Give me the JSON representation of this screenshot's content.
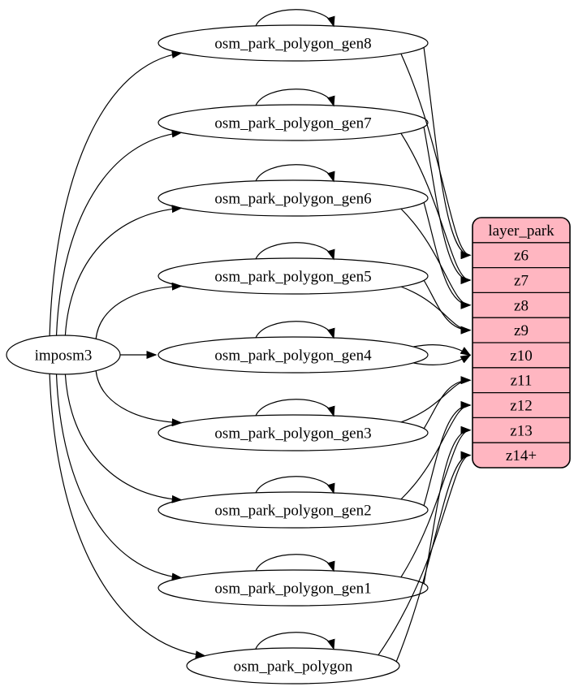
{
  "diagram": {
    "source_node": {
      "label": "imposm3"
    },
    "generator_tables": [
      {
        "label": "osm_park_polygon_gen8",
        "fed_by": "imposm3",
        "self_loop": true,
        "feeds_row": "z6",
        "row_edge_count": 2
      },
      {
        "label": "osm_park_polygon_gen7",
        "fed_by": "imposm3",
        "self_loop": true,
        "feeds_row": "z7",
        "row_edge_count": 2
      },
      {
        "label": "osm_park_polygon_gen6",
        "fed_by": "imposm3",
        "self_loop": true,
        "feeds_row": "z8",
        "row_edge_count": 2
      },
      {
        "label": "osm_park_polygon_gen5",
        "fed_by": "imposm3",
        "self_loop": true,
        "feeds_row": "z9",
        "row_edge_count": 2
      },
      {
        "label": "osm_park_polygon_gen4",
        "fed_by": "imposm3",
        "self_loop": true,
        "feeds_row": "z10",
        "row_edge_count": 2
      },
      {
        "label": "osm_park_polygon_gen3",
        "fed_by": "imposm3",
        "self_loop": true,
        "feeds_row": "z11",
        "row_edge_count": 2
      },
      {
        "label": "osm_park_polygon_gen2",
        "fed_by": "imposm3",
        "self_loop": true,
        "feeds_row": "z12",
        "row_edge_count": 2
      },
      {
        "label": "osm_park_polygon_gen1",
        "fed_by": "imposm3",
        "self_loop": true,
        "feeds_row": "z13",
        "row_edge_count": 2
      },
      {
        "label": "osm_park_polygon",
        "fed_by": "imposm3",
        "self_loop": true,
        "feeds_row": "z14+",
        "row_edge_count": 2
      }
    ],
    "layer_table": {
      "title": "layer_park",
      "rows": [
        "z6",
        "z7",
        "z8",
        "z9",
        "z10",
        "z11",
        "z12",
        "z13",
        "z14+"
      ]
    },
    "colors": {
      "layer_table_fill": "#ffb6c1",
      "node_fill": "#ffffff",
      "stroke": "#000000"
    }
  }
}
